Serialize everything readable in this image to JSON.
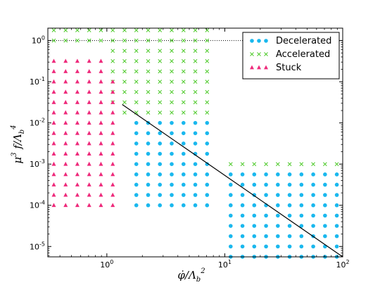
{
  "chart_data": {
    "type": "scatter",
    "x_scale": "log",
    "y_scale": "log",
    "xlim": [
      0.316,
      100
    ],
    "ylim": [
      5.6e-06,
      2.0
    ],
    "xlabel": "φ̇/Λ_b²",
    "ylabel": "μ³ f/Λ_b⁴",
    "x_ticks": [
      {
        "value": 1,
        "base": "10",
        "exp": "0"
      },
      {
        "value": 10,
        "base": "10",
        "exp": "1"
      },
      {
        "value": 100,
        "base": "10",
        "exp": "2"
      }
    ],
    "y_ticks": [
      {
        "value": 1,
        "base": "10",
        "exp": "0"
      },
      {
        "value": 0.1,
        "base": "10",
        "exp": "-1"
      },
      {
        "value": 0.01,
        "base": "10",
        "exp": "-2"
      },
      {
        "value": 0.001,
        "base": "10",
        "exp": "-3"
      },
      {
        "value": 0.0001,
        "base": "10",
        "exp": "-4"
      },
      {
        "value": 1e-05,
        "base": "10",
        "exp": "-5"
      }
    ],
    "grid": false,
    "legend_position": "top-right",
    "hline": {
      "y": 1,
      "style": "dotted"
    },
    "boundary_line": {
      "points": [
        [
          1.35,
          0.028
        ],
        [
          100,
          5.6e-06
        ]
      ]
    },
    "x_grid": [
      0.355,
      0.447,
      0.562,
      0.708,
      0.891,
      1.122,
      1.413,
      1.778,
      2.239,
      2.818,
      3.548,
      4.467,
      5.623,
      7.079,
      8.913,
      11.22,
      14.13,
      17.78,
      22.39,
      28.18,
      35.48,
      44.67,
      56.23,
      70.79,
      89.13
    ],
    "y_levels": [
      1.778,
      1.0,
      0.5623,
      0.3162,
      0.1778,
      0.1,
      0.05623,
      0.03162,
      0.01778,
      0.01,
      0.005623,
      0.003162,
      0.001778,
      0.001,
      0.0005623,
      0.0003162,
      0.0001778,
      0.0001,
      5.623e-05,
      3.162e-05,
      1.778e-05,
      1e-05,
      5.623e-06
    ],
    "series": [
      {
        "name": "Decelerated",
        "color": "#1ab8ee",
        "marker": "circle",
        "regions": [
          {
            "x_min": 1.7,
            "x_max": 8.0,
            "y_min": 9e-05,
            "y_max": 0.012
          },
          {
            "x_min": 10.0,
            "x_max": 100,
            "y_min": 5e-06,
            "y_max": 0.0006
          }
        ]
      },
      {
        "name": "Accelerated",
        "color": "#55cc33",
        "marker": "x",
        "regions": [
          {
            "x_min": 0.35,
            "x_max": 1.0,
            "y_min": 1.0,
            "y_max": 2.0
          },
          {
            "x_min": 1.0,
            "x_max": 1.3,
            "y_min": 0.0285,
            "y_max": 2.0
          },
          {
            "x_min": 1.3,
            "x_max": 8.0,
            "y_min": 0.0144,
            "y_max": 2.0
          },
          {
            "x_min": 10.0,
            "x_max": 100,
            "y_min": 0.0008,
            "y_max": 0.0011
          }
        ]
      },
      {
        "name": "Stuck",
        "color": "#ee2a7b",
        "marker": "triangle",
        "regions": [
          {
            "x_min": 0.35,
            "x_max": 1.0,
            "y_min": 0.0001,
            "y_max": 0.56
          },
          {
            "x_min": 1.0,
            "x_max": 1.3,
            "y_min": 0.0001,
            "y_max": 0.1
          }
        ]
      }
    ]
  }
}
